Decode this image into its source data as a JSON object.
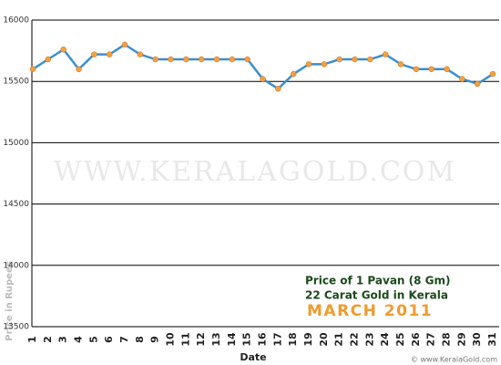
{
  "chart_data": {
    "type": "line",
    "y_label": "Price in Rupees",
    "x_label": "Date",
    "watermark": "WWW.KERALAGOLD.COM",
    "annotation_lines": [
      "Price of 1 Pavan (8 Gm)",
      "22 Carat Gold in Kerala"
    ],
    "annotation_month": "MARCH 2011",
    "footer": "© www.KeralaGold.com",
    "categories": [
      "1",
      "2",
      "3",
      "4",
      "5",
      "6",
      "7",
      "8",
      "9",
      "10",
      "11",
      "12",
      "13",
      "14",
      "15",
      "16",
      "17",
      "18",
      "19",
      "20",
      "21",
      "22",
      "23",
      "24",
      "25",
      "26",
      "27",
      "28",
      "29",
      "30",
      "31"
    ],
    "series": [
      {
        "color": "#3a8fd0",
        "marker_color": "#f5a040",
        "values": [
          15600,
          15680,
          15760,
          15600,
          15720,
          15720,
          15800,
          15720,
          15680,
          15680,
          15680,
          15680,
          15680,
          15680,
          15680,
          15520,
          15440,
          15560,
          15640,
          15640,
          15680,
          15680,
          15680,
          15720,
          15640,
          15600,
          15600,
          15600,
          15520,
          15480,
          15560
        ]
      }
    ],
    "ylim": [
      13500,
      16000
    ],
    "yticks": [
      13500,
      14000,
      14500,
      15000,
      15500,
      16000
    ],
    "grid": true
  }
}
